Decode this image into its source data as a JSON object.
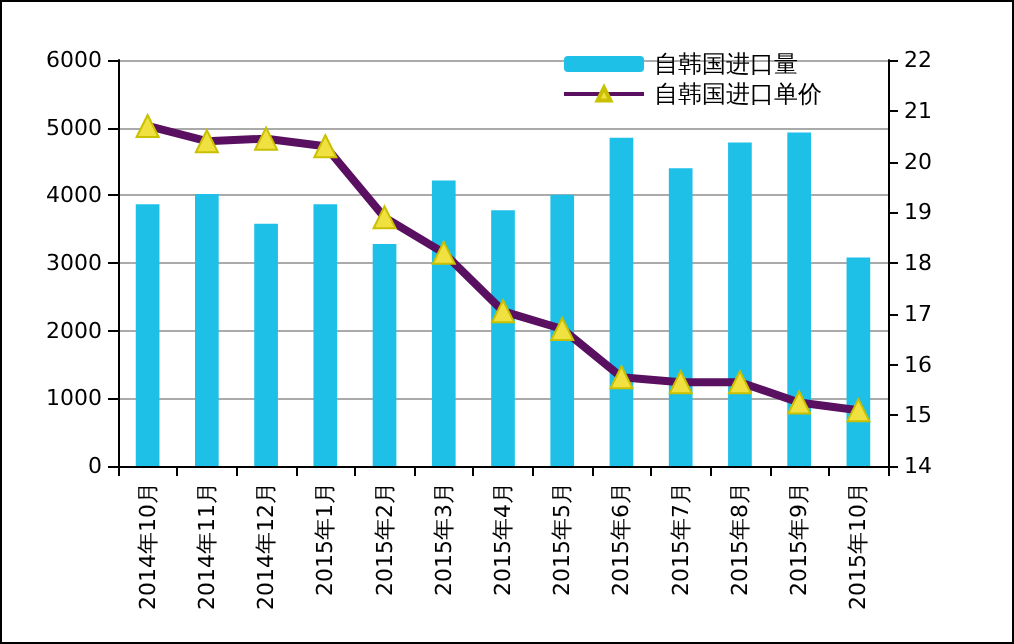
{
  "chart_data": {
    "type": "bar",
    "categories": [
      "2014年10月",
      "2014年11月",
      "2014年12月",
      "2015年1月",
      "2015年2月",
      "2015年3月",
      "2015年4月",
      "2015年5月",
      "2015年6月",
      "2015年7月",
      "2015年8月",
      "2015年9月",
      "2015年10月"
    ],
    "series": [
      {
        "name": "自韩国进口量",
        "color": "#1ec0e8",
        "values": [
          3870,
          4020,
          3580,
          3870,
          3280,
          4220,
          3780,
          4010,
          4850,
          4400,
          4780,
          4930,
          3080
        ]
      },
      {
        "name": "自韩国进口单价",
        "type": "line",
        "axis": "y2",
        "color": "#5a1060",
        "marker": "triangle",
        "values": [
          20.7,
          20.4,
          20.45,
          20.3,
          18.9,
          18.2,
          17.05,
          16.7,
          15.75,
          15.65,
          15.65,
          15.25,
          15.1
        ]
      }
    ],
    "ylim": [
      0,
      6000
    ],
    "yticks": [
      0,
      1000,
      2000,
      3000,
      4000,
      5000,
      6000
    ],
    "y2lim": [
      14,
      22
    ],
    "y2ticks": [
      14,
      15,
      16,
      17,
      18,
      19,
      20,
      21,
      22
    ],
    "grid": "y",
    "legend": "top right"
  }
}
